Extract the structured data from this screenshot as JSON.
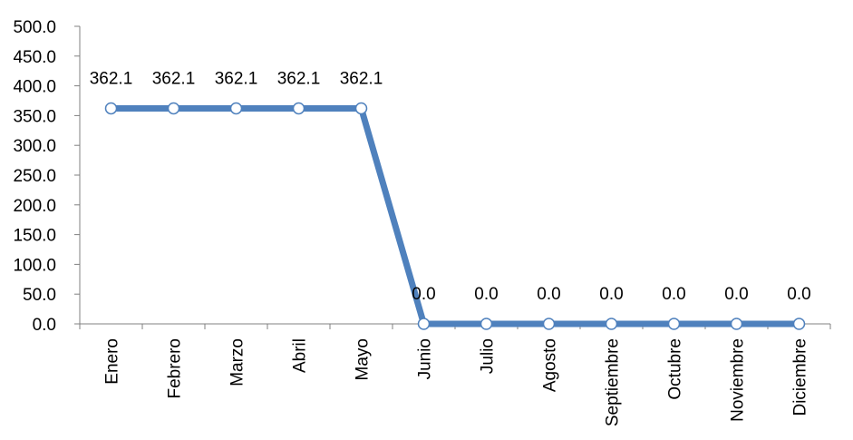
{
  "chart_data": {
    "type": "line",
    "title": "",
    "xlabel": "",
    "ylabel": "",
    "categories": [
      "Enero",
      "Febrero",
      "Marzo",
      "Abril",
      "Mayo",
      "Junio",
      "Julio",
      "Agosto",
      "Septiembre",
      "Octubre",
      "Noviembre",
      "Diciembre"
    ],
    "series": [
      {
        "values": [
          362.1,
          362.1,
          362.1,
          362.1,
          362.1,
          0.0,
          0.0,
          0.0,
          0.0,
          0.0,
          0.0,
          0.0
        ],
        "data_labels": [
          "362.1",
          "362.1",
          "362.1",
          "362.1",
          "362.1",
          "0.0",
          "0.0",
          "0.0",
          "0.0",
          "0.0",
          "0.0",
          "0.0"
        ],
        "color": "#4F81BD"
      }
    ],
    "ylim": [
      0,
      500
    ],
    "yticks": [
      "0.0",
      "50.0",
      "100.0",
      "150.0",
      "200.0",
      "250.0",
      "300.0",
      "350.0",
      "400.0",
      "450.0",
      "500.0"
    ],
    "grid": false,
    "legend": "none"
  }
}
